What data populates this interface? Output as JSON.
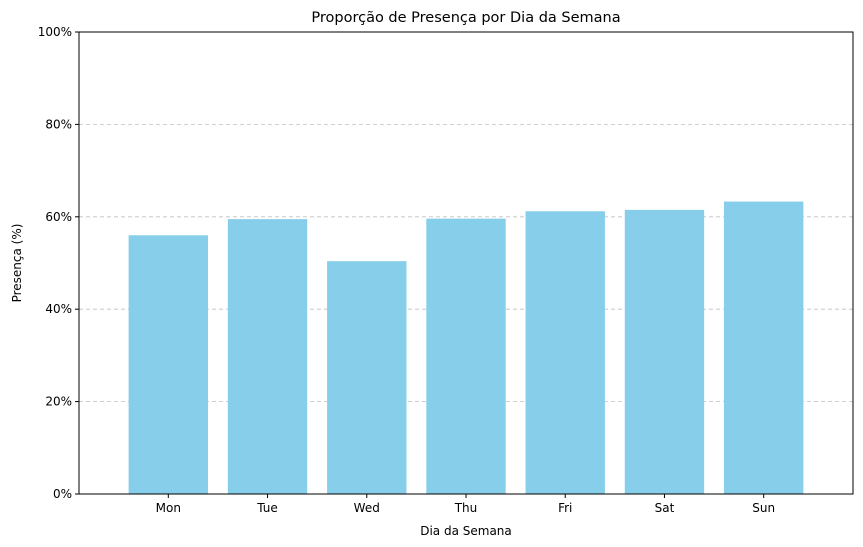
{
  "chart_data": {
    "type": "bar",
    "title": "Proporção de Presença por Dia da Semana",
    "xlabel": "Dia da Semana",
    "ylabel": "Presença (%)",
    "categories": [
      "Mon",
      "Tue",
      "Wed",
      "Thu",
      "Fri",
      "Sat",
      "Sun"
    ],
    "values": [
      56.0,
      59.5,
      50.4,
      59.6,
      61.2,
      61.5,
      63.3
    ],
    "ylim": [
      0,
      100
    ],
    "yticks": [
      0,
      20,
      40,
      60,
      80,
      100
    ],
    "ytick_labels": [
      "0%",
      "20%",
      "40%",
      "60%",
      "80%",
      "100%"
    ],
    "bar_color": "#87ceeb",
    "grid": "y-dashed",
    "legend": "none"
  }
}
